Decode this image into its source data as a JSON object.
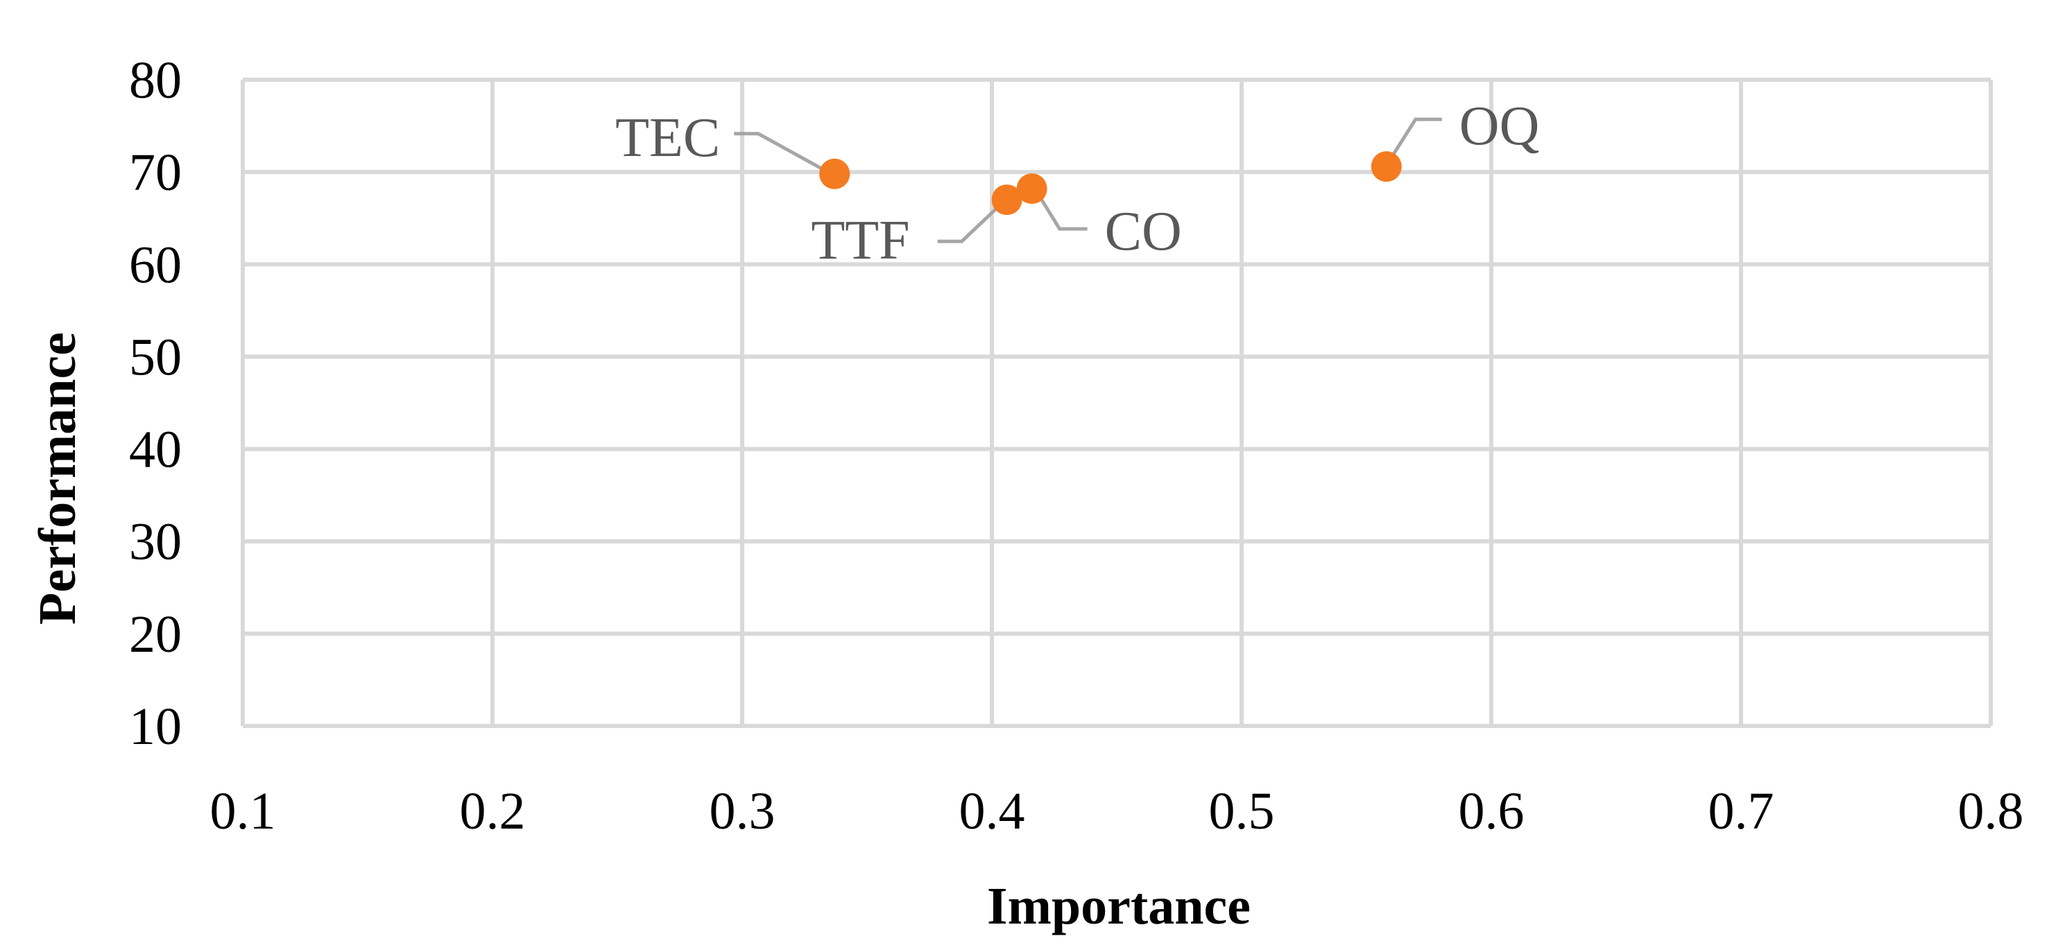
{
  "chart_data": {
    "type": "scatter",
    "title": "",
    "xlabel": "Importance",
    "ylabel": "Performance",
    "xlim": [
      0.1,
      0.8
    ],
    "ylim": [
      10,
      80
    ],
    "x_ticks": [
      "0.1",
      "0.2",
      "0.3",
      "0.4",
      "0.5",
      "0.6",
      "0.7",
      "0.8"
    ],
    "y_ticks": [
      "10",
      "20",
      "30",
      "40",
      "50",
      "60",
      "70",
      "80"
    ],
    "x_tick_values": [
      0.1,
      0.2,
      0.3,
      0.4,
      0.5,
      0.6,
      0.7,
      0.8
    ],
    "y_tick_values": [
      10,
      20,
      30,
      40,
      50,
      60,
      70,
      80
    ],
    "grid": true,
    "marker_color": "#f47b20",
    "label_color": "#595959",
    "grid_color": "#d9d9d9",
    "points": [
      {
        "label": "TEC",
        "x": 0.337,
        "y": 69.8,
        "label_side": "upper-left"
      },
      {
        "label": "TTF",
        "x": 0.406,
        "y": 67.0,
        "label_side": "lower-left"
      },
      {
        "label": "CO",
        "x": 0.416,
        "y": 68.2,
        "label_side": "lower-right"
      },
      {
        "label": "OQ",
        "x": 0.558,
        "y": 70.6,
        "label_side": "upper-right"
      }
    ]
  }
}
